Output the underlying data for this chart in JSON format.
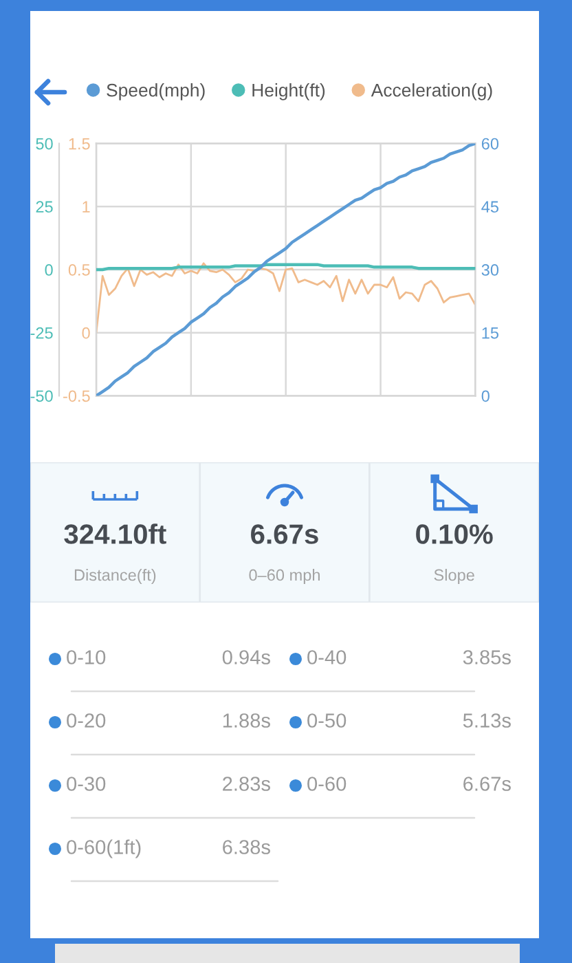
{
  "chart_data": [
    {
      "type": "line",
      "categories": [
        null,
        null,
        null,
        null,
        null,
        null,
        null,
        null,
        null,
        null,
        null,
        null,
        null,
        null,
        null,
        null,
        null,
        null,
        null,
        null,
        null,
        null,
        null,
        null,
        null,
        null,
        null,
        null,
        null,
        null,
        null,
        null,
        null,
        null,
        null,
        null,
        null,
        null,
        null,
        null,
        null,
        null,
        null,
        null,
        null,
        null,
        null,
        null,
        null,
        null,
        null,
        null,
        null,
        null,
        null,
        null,
        null,
        null,
        null,
        null,
        null
      ],
      "series": [
        {
          "name": "Speed(mph)",
          "color": "#5b9bd5",
          "axis": "y2",
          "values": [
            0,
            1,
            2,
            3.5,
            4.5,
            5.5,
            7,
            8,
            9,
            10.5,
            11.5,
            12.5,
            14,
            15,
            16,
            17.5,
            18.5,
            19.5,
            21,
            22,
            23.5,
            24.5,
            26,
            27,
            28,
            29.5,
            30.5,
            32,
            33,
            34,
            35,
            36.5,
            37.5,
            38.5,
            39.5,
            40.5,
            41.5,
            42.5,
            43.5,
            44.5,
            45.5,
            46.5,
            47,
            48,
            49,
            49.5,
            50.5,
            51,
            52,
            52.5,
            53.5,
            54,
            54.5,
            55.5,
            56,
            56.5,
            57.5,
            58,
            58.5,
            59.5,
            60
          ]
        },
        {
          "name": "Height(ft)",
          "color": "#4dbdb6",
          "axis": "y3",
          "values": [
            0,
            0,
            0.5,
            0.5,
            0.5,
            0.5,
            0.5,
            0.5,
            0.5,
            0.5,
            0.5,
            0.5,
            0.5,
            1,
            1,
            1,
            1,
            1,
            1,
            1,
            1,
            1,
            1.5,
            1.5,
            1.5,
            1.5,
            1.5,
            2,
            2,
            2,
            2,
            2,
            2,
            2,
            2,
            2,
            1.5,
            1.5,
            1.5,
            1.5,
            1.5,
            1.5,
            1.5,
            1.5,
            1,
            1,
            1,
            1,
            1,
            1,
            1,
            0.5,
            0.5,
            0.5,
            0.5,
            0.5,
            0.5,
            0.5,
            0.5,
            0.5,
            0.5
          ]
        },
        {
          "name": "Acceleration(g)",
          "color": "#f0bb8c",
          "values": [
            0,
            0.45,
            0.3,
            0.35,
            0.45,
            0.51,
            0.37,
            0.5,
            0.46,
            0.48,
            0.44,
            0.47,
            0.45,
            0.54,
            0.47,
            0.49,
            0.47,
            0.55,
            0.49,
            0.48,
            0.5,
            0.46,
            0.4,
            0.43,
            0.5,
            0.49,
            0.51,
            0.5,
            0.47,
            0.33,
            0.5,
            0.51,
            0.4,
            0.42,
            0.4,
            0.38,
            0.41,
            0.36,
            0.45,
            0.25,
            0.42,
            0.31,
            0.42,
            0.31,
            0.38,
            0.38,
            0.36,
            0.44,
            0.27,
            0.32,
            0.31,
            0.25,
            0.38,
            0.41,
            0.35,
            0.24,
            0.28,
            0.29,
            0.3,
            0.31,
            0.22
          ]
        }
      ],
      "ylim": [
        -0.5,
        1.5
      ],
      "yticks": [
        -0.5,
        0,
        0.5,
        1,
        1.5
      ],
      "y2lim": [
        0,
        60
      ],
      "y2ticks": [
        0,
        15,
        30,
        45,
        60
      ],
      "y3lim": [
        -50,
        50
      ],
      "y3ticks": [
        -50,
        -25,
        0,
        25,
        50
      ],
      "grid": true,
      "legend": "top"
    },
    {
      "type": "other",
      "annotations": [
        "324.10ft",
        "Distance(ft)",
        "6.67s",
        "0–60 mph",
        "0.10%",
        "Slope"
      ]
    },
    {
      "type": "other",
      "annotations": [
        "0-10",
        "0.94s",
        "0-40",
        "3.85s",
        "0-20",
        "1.88s",
        "0-50",
        "5.13s",
        "0-30",
        "2.83s",
        "0-60",
        "6.67s",
        "0-60(1ft)",
        "6.38s"
      ]
    }
  ]
}
